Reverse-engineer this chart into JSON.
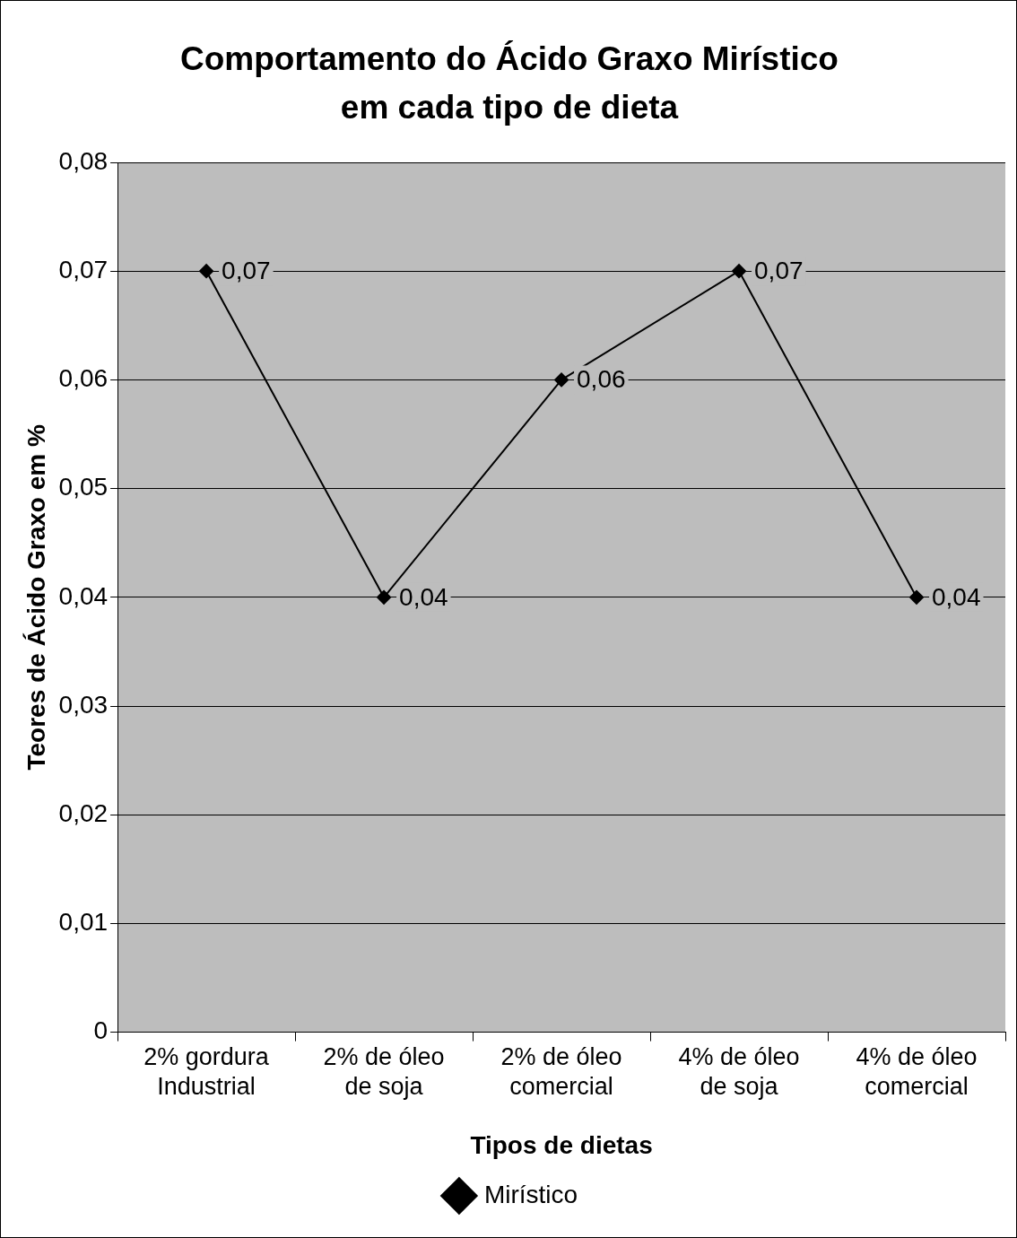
{
  "chart_data": {
    "type": "line",
    "title": "Comportamento do Ácido Graxo Mirístico em cada tipo de dieta",
    "xlabel": "Tipos de dietas",
    "ylabel": "Teores de Ácido Graxo em %",
    "categories": [
      "2% gordura Industrial",
      "2% de óleo de soja",
      "2% de óleo comercial",
      "4% de óleo de soja",
      "4% de óleo comercial"
    ],
    "series": [
      {
        "name": "Mirístico",
        "color": "#000000",
        "values": [
          0.07,
          0.04,
          0.06,
          0.07,
          0.04
        ],
        "value_labels": [
          "0,07",
          "0,04",
          "0,06",
          "0,07",
          "0,04"
        ]
      }
    ],
    "ylim": [
      0,
      0.08
    ],
    "yticks": [
      {
        "value": 0,
        "label": "0"
      },
      {
        "value": 0.01,
        "label": "0,01"
      },
      {
        "value": 0.02,
        "label": "0,02"
      },
      {
        "value": 0.03,
        "label": "0,03"
      },
      {
        "value": 0.04,
        "label": "0,04"
      },
      {
        "value": 0.05,
        "label": "0,05"
      },
      {
        "value": 0.06,
        "label": "0,06"
      },
      {
        "value": 0.07,
        "label": "0,07"
      },
      {
        "value": 0.08,
        "label": "0,08"
      }
    ],
    "grid": "y",
    "legend": "bottom",
    "marker": "diamond",
    "line_style": "solid"
  }
}
